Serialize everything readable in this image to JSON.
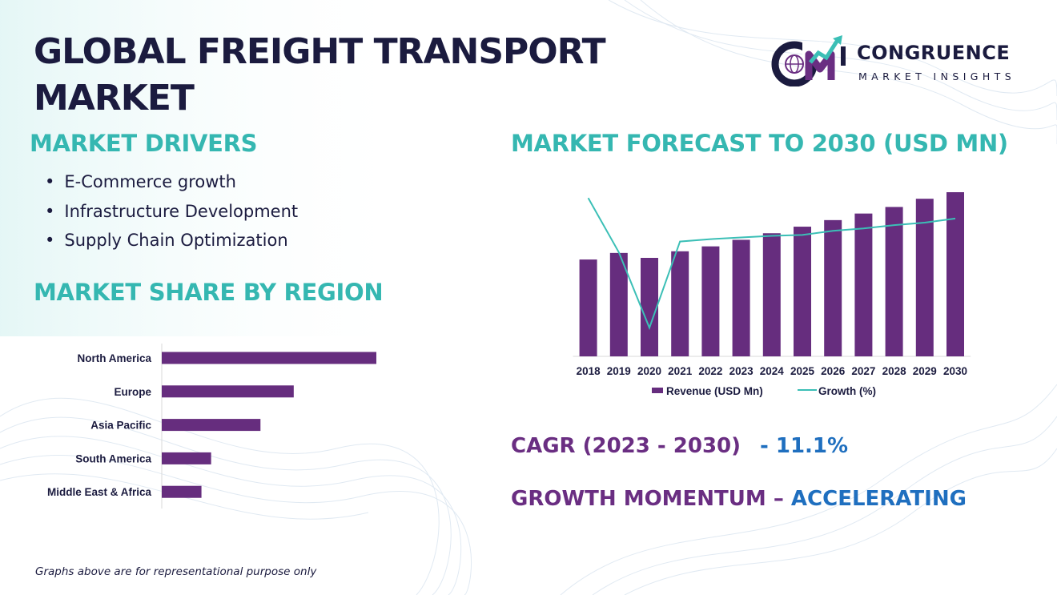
{
  "title_lines": [
    "GLOBAL FREIGHT TRANSPORT",
    "MARKET"
  ],
  "logo": {
    "name": "CONGRUENCE",
    "tagline": "MARKET INSIGHTS"
  },
  "sections": {
    "drivers": "MARKET DRIVERS",
    "forecast": "MARKET FORECAST TO 2030 (USD MN)",
    "share": "MARKET SHARE BY REGION"
  },
  "drivers": [
    "E-Commerce growth",
    "Infrastructure Development",
    "Supply Chain Optimization"
  ],
  "cagr": {
    "label": "CAGR (2023 - 2030)",
    "value": "- 11.1%"
  },
  "growth_momentum": {
    "label": "GROWTH MOMENTUM –",
    "value": "ACCELERATING"
  },
  "footnote": "Graphs above are for representational purpose only",
  "colors": {
    "bar": "#662d7e",
    "line": "#3bbfb6",
    "heading": "#35b7b1",
    "title": "#1b1b3f",
    "accent_blue": "#1f6fbf",
    "accent_purple": "#6a2e82"
  },
  "chart_data": [
    {
      "type": "bar",
      "orientation": "horizontal",
      "categories": [
        "North America",
        "Europe",
        "Asia Pacific",
        "South America",
        "Middle East & Africa"
      ],
      "values": [
        100,
        61.5,
        46,
        23,
        18.5
      ],
      "title": "",
      "xlabel": "",
      "ylabel": "",
      "grid": false
    },
    {
      "type": "bar",
      "categories": [
        "2018",
        "2019",
        "2020",
        "2021",
        "2022",
        "2023",
        "2024",
        "2025",
        "2026",
        "2027",
        "2028",
        "2029",
        "2030"
      ],
      "series": [
        {
          "name": "Revenue (USD Mn)",
          "type": "bar",
          "values": [
            59,
            63,
            60,
            64,
            67,
            71,
            75,
            79,
            83,
            87,
            91,
            96,
            100
          ]
        },
        {
          "name": "Growth (%)",
          "type": "line",
          "values": [
            88,
            22,
            -70,
            35,
            38,
            40,
            42,
            43,
            48,
            51,
            55,
            58,
            63
          ]
        }
      ],
      "legend": "bottom",
      "grid": false
    }
  ]
}
